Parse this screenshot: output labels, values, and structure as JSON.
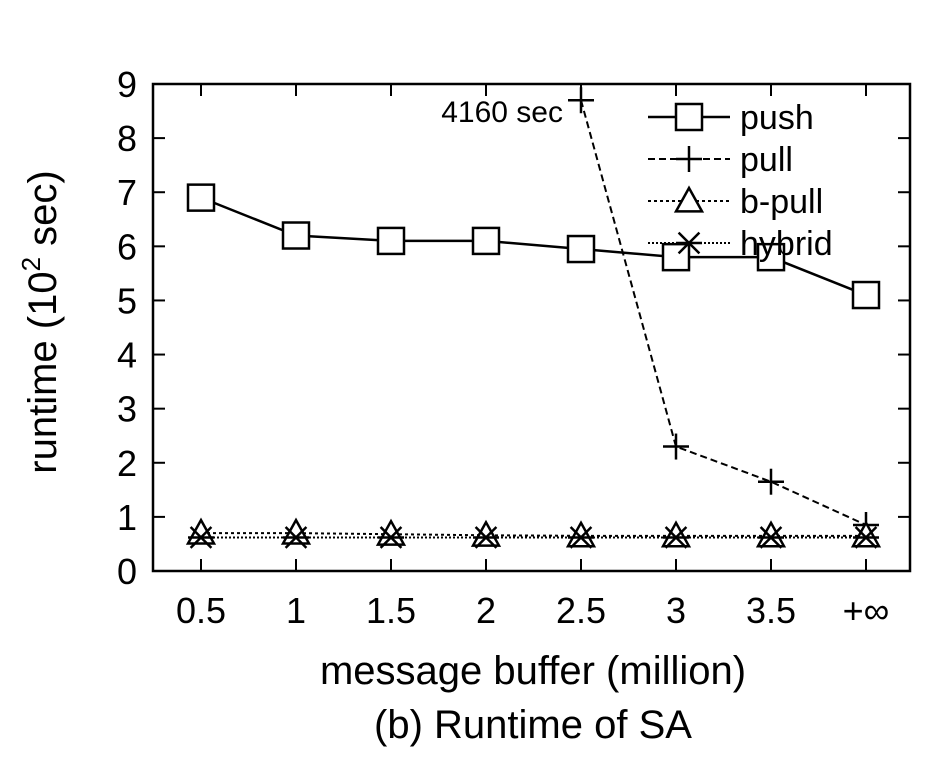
{
  "chart_data": {
    "type": "line",
    "caption": "(b) Runtime of SA",
    "xlabel": "message buffer (million)",
    "ylabel_main": "runtime (10",
    "ylabel_sup": "2",
    "ylabel_end": " sec)",
    "categories": [
      "0.5",
      "1",
      "1.5",
      "2",
      "2.5",
      "3",
      "3.5",
      "+∞"
    ],
    "ylim": [
      0,
      9
    ],
    "yticks": [
      "0",
      "1",
      "2",
      "3",
      "4",
      "5",
      "6",
      "7",
      "8",
      "9"
    ],
    "grid": false,
    "legend_position": "top-right",
    "series": [
      {
        "name": "push",
        "marker": "square",
        "dash": "solid",
        "values": [
          6.9,
          6.2,
          6.1,
          6.1,
          5.95,
          5.8,
          5.8,
          5.1
        ]
      },
      {
        "name": "pull",
        "marker": "plus",
        "dash": "dashed",
        "values": [
          null,
          null,
          null,
          null,
          8.7,
          2.3,
          1.65,
          0.85
        ]
      },
      {
        "name": "b-pull",
        "marker": "triangle",
        "dash": "dotted",
        "values": [
          0.7,
          0.7,
          0.68,
          0.66,
          0.65,
          0.65,
          0.65,
          0.65
        ]
      },
      {
        "name": "hybrid",
        "marker": "asterisk",
        "dash": "dense",
        "values": [
          0.62,
          0.62,
          0.62,
          0.62,
          0.62,
          0.62,
          0.62,
          0.62
        ]
      }
    ],
    "annotations": [
      {
        "text": "4160 sec",
        "series": "pull",
        "category": "2.5"
      }
    ]
  }
}
